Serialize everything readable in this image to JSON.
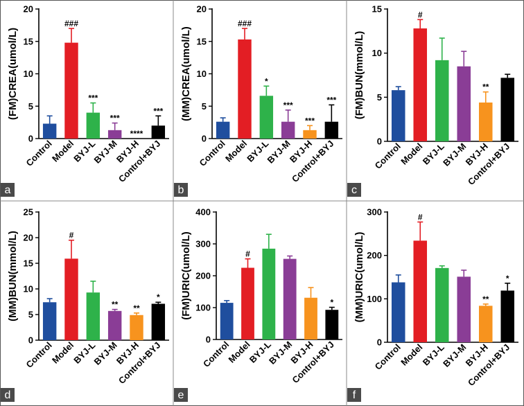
{
  "figure": {
    "colors": {
      "Control": "#1f4e9e",
      "Model": "#e31e24",
      "BYJ-L": "#2eb24a",
      "BYJ-M": "#8a3d96",
      "BYJ-H": "#f7931e",
      "Control+BYJ": "#000000"
    }
  },
  "chart_data": [
    {
      "panel": "a",
      "type": "bar",
      "ylabel": "(FM)CREA(umol/L)",
      "ylim": [
        0,
        20
      ],
      "yticks": [
        0,
        5,
        10,
        15,
        20
      ],
      "categories": [
        "Control",
        "Model",
        "BYJ-L",
        "BYJ-M",
        "BYJ-H",
        "Control+BYJ"
      ],
      "values": [
        2.3,
        14.8,
        4.0,
        1.3,
        0.0,
        2.0
      ],
      "errors": [
        1.2,
        2.2,
        1.5,
        1.1,
        0.0,
        1.5
      ],
      "annotations": [
        "",
        "###",
        "***",
        "***",
        "****",
        "***"
      ]
    },
    {
      "panel": "b",
      "type": "bar",
      "ylabel": "(MM)CREA(umol/L)",
      "ylim": [
        0,
        20
      ],
      "yticks": [
        0,
        5,
        10,
        15,
        20
      ],
      "categories": [
        "Control",
        "Model",
        "BYJ-L",
        "BYJ-M",
        "BYJ-H",
        "Control+BYJ"
      ],
      "values": [
        2.6,
        15.3,
        6.6,
        2.6,
        1.3,
        2.6
      ],
      "errors": [
        0.6,
        1.7,
        1.5,
        1.8,
        0.7,
        2.6
      ],
      "annotations": [
        "",
        "###",
        "*",
        "***",
        "***",
        "***"
      ]
    },
    {
      "panel": "c",
      "type": "bar",
      "ylabel": "(FM)BUN(mmol/L)",
      "ylim": [
        0,
        15
      ],
      "yticks": [
        0,
        5,
        10,
        15
      ],
      "categories": [
        "Control",
        "Model",
        "BYJ-L",
        "BYJ-M",
        "BYJ-H",
        "Control+BYJ"
      ],
      "values": [
        5.8,
        12.8,
        9.2,
        8.5,
        4.4,
        7.2
      ],
      "errors": [
        0.4,
        1.0,
        2.5,
        1.7,
        1.2,
        0.4
      ],
      "annotations": [
        "",
        "#",
        "",
        "",
        "**",
        ""
      ]
    },
    {
      "panel": "d",
      "type": "bar",
      "ylabel": "(MM)BUN(mmol/L)",
      "ylim": [
        0,
        25
      ],
      "yticks": [
        0,
        5,
        10,
        15,
        20,
        25
      ],
      "categories": [
        "Control",
        "Model",
        "BYJ-L",
        "BYJ-M",
        "BYJ-H",
        "Control+BYJ"
      ],
      "values": [
        7.4,
        15.9,
        9.3,
        5.7,
        4.9,
        7.1
      ],
      "errors": [
        0.7,
        3.6,
        2.2,
        0.3,
        0.4,
        0.3
      ],
      "annotations": [
        "",
        "#",
        "",
        "**",
        "**",
        "*"
      ]
    },
    {
      "panel": "e",
      "type": "bar",
      "ylabel": "(FM)URIC(umol/L)",
      "ylim": [
        0,
        400
      ],
      "yticks": [
        0,
        100,
        200,
        300,
        400
      ],
      "categories": [
        "Control",
        "Model",
        "BYJ-L",
        "BYJ-M",
        "BYJ-H",
        "Control+BYJ"
      ],
      "values": [
        115,
        225,
        285,
        253,
        131,
        93
      ],
      "errors": [
        7,
        28,
        45,
        9,
        32,
        8
      ],
      "annotations": [
        "",
        "#",
        "",
        "",
        "",
        "*"
      ]
    },
    {
      "panel": "f",
      "type": "bar",
      "ylabel": "(MM)URIC(umol/L)",
      "ylim": [
        0,
        300
      ],
      "yticks": [
        0,
        100,
        200,
        300
      ],
      "categories": [
        "Control",
        "Model",
        "BYJ-L",
        "BYJ-M",
        "BYJ-H",
        "Control+BYJ"
      ],
      "values": [
        138,
        234,
        171,
        151,
        84,
        119
      ],
      "errors": [
        17,
        43,
        5,
        15,
        4,
        17
      ],
      "annotations": [
        "",
        "#",
        "",
        "",
        "**",
        "*"
      ]
    }
  ]
}
